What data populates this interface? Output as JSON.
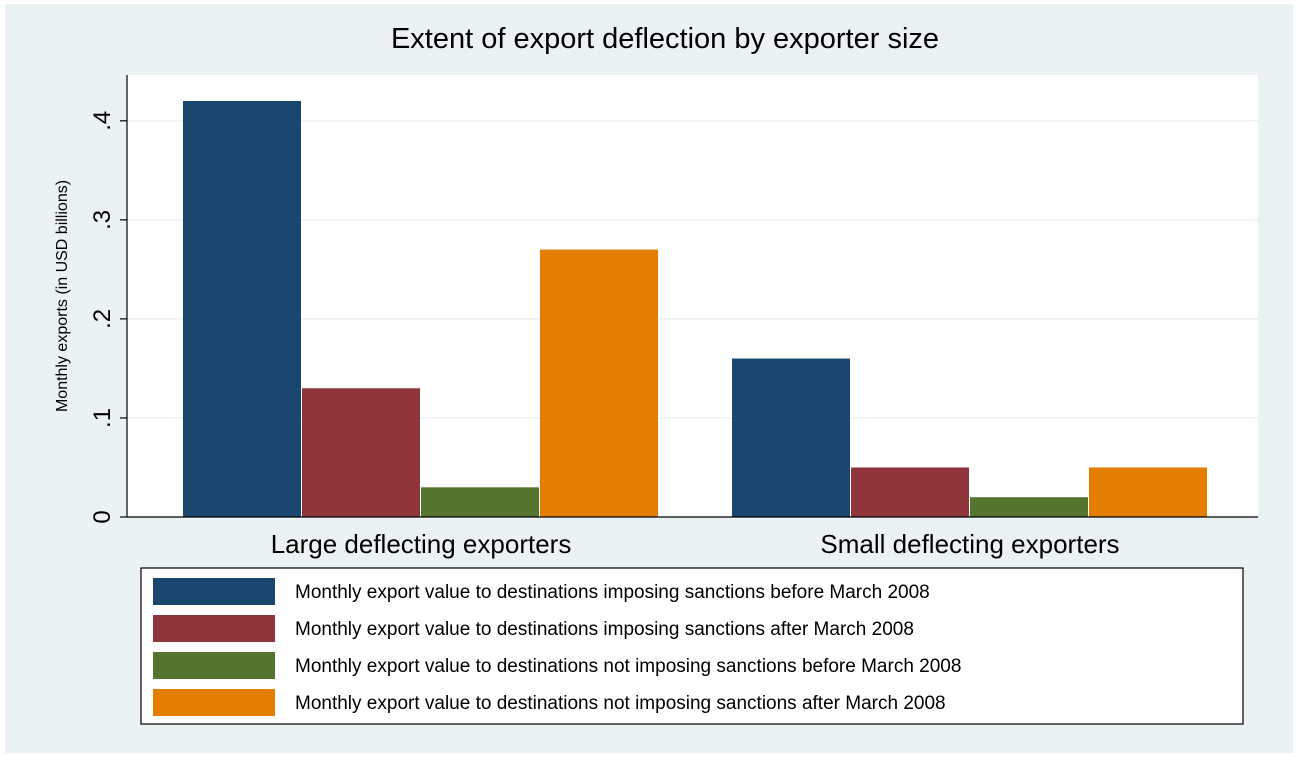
{
  "chart_data": {
    "type": "bar",
    "title": "Extent of export deflection by exporter size",
    "ylabel": "Monthly exports (in USD billions)",
    "xlabel": "",
    "categories": [
      "Large deflecting exporters",
      "Small deflecting exporters"
    ],
    "ylim": [
      0,
      0.42
    ],
    "yticks": [
      {
        "value": 0,
        "label": "0"
      },
      {
        "value": 0.1,
        "label": ".1"
      },
      {
        "value": 0.2,
        "label": ".2"
      },
      {
        "value": 0.3,
        "label": ".3"
      },
      {
        "value": 0.4,
        "label": ".4"
      }
    ],
    "grid": true,
    "legend_position": "bottom",
    "series": [
      {
        "name": "Monthly export value to destinations imposing sanctions before March 2008",
        "color": "#1a476f",
        "values": [
          0.42,
          0.16
        ]
      },
      {
        "name": "Monthly export value to destinations imposing sanctions after March 2008",
        "color": "#90353b",
        "values": [
          0.13,
          0.05
        ]
      },
      {
        "name": "Monthly export value to destinations not imposing sanctions before March 2008",
        "color": "#55752f",
        "values": [
          0.03,
          0.02
        ]
      },
      {
        "name": "Monthly export value to destinations not imposing sanctions after March 2008",
        "color": "#e37e00",
        "values": [
          0.27,
          0.05
        ]
      }
    ]
  }
}
